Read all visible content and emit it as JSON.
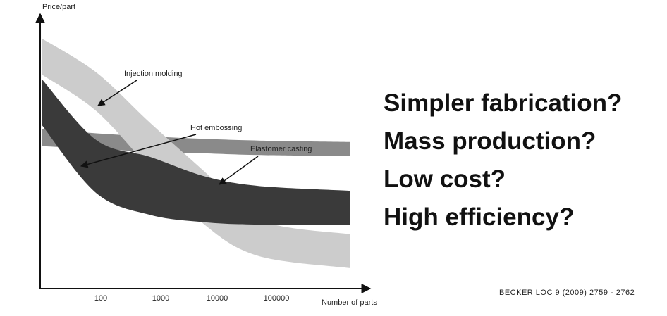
{
  "chart_data": {
    "type": "area",
    "ylabel": "Price/part",
    "xlabel": "Number of parts",
    "x_scale": "log",
    "tick_labels": [
      "100",
      "1000",
      "10000",
      "100000"
    ],
    "grid": false,
    "legend": "none",
    "series": [
      {
        "name": "Elastomer casting",
        "color": "#8a8a8a",
        "band_upper": [
          [
            10,
            0.625
          ],
          [
            100,
            0.608
          ],
          [
            1000,
            0.595
          ],
          [
            10000,
            0.585
          ],
          [
            100000,
            0.578
          ],
          [
            5000000,
            0.572
          ]
        ],
        "band_lower": [
          [
            10,
            0.555
          ],
          [
            100,
            0.543
          ],
          [
            1000,
            0.532
          ],
          [
            10000,
            0.525
          ],
          [
            100000,
            0.518
          ],
          [
            5000000,
            0.513
          ]
        ]
      },
      {
        "name": "Injection molding",
        "color": "#cccccc",
        "band_upper": [
          [
            10,
            1.0
          ],
          [
            100,
            0.86
          ],
          [
            1000,
            0.65
          ],
          [
            10000,
            0.45
          ],
          [
            100000,
            0.25
          ],
          [
            5000000,
            0.19
          ]
        ],
        "band_lower": [
          [
            10,
            0.85
          ],
          [
            100,
            0.7
          ],
          [
            1000,
            0.46
          ],
          [
            10000,
            0.23
          ],
          [
            100000,
            0.1
          ],
          [
            5000000,
            0.05
          ]
        ]
      },
      {
        "name": "Hot embossing",
        "color": "#3a3a3a",
        "band_upper": [
          [
            10,
            0.83
          ],
          [
            100,
            0.58
          ],
          [
            1000,
            0.51
          ],
          [
            10000,
            0.43
          ],
          [
            100000,
            0.39
          ],
          [
            5000000,
            0.37
          ]
        ],
        "band_lower": [
          [
            10,
            0.64
          ],
          [
            100,
            0.36
          ],
          [
            1000,
            0.27
          ],
          [
            10000,
            0.24
          ],
          [
            100000,
            0.23
          ],
          [
            5000000,
            0.23
          ]
        ]
      }
    ],
    "annotations": [
      "Injection molding",
      "Hot embossing",
      "Elastomer casting"
    ]
  },
  "questions": [
    "Simpler fabrication?",
    "Mass production?",
    "Low cost?",
    "High efficiency?"
  ],
  "citation": "BECKER LOC 9 (2009) 2759 - 2762"
}
